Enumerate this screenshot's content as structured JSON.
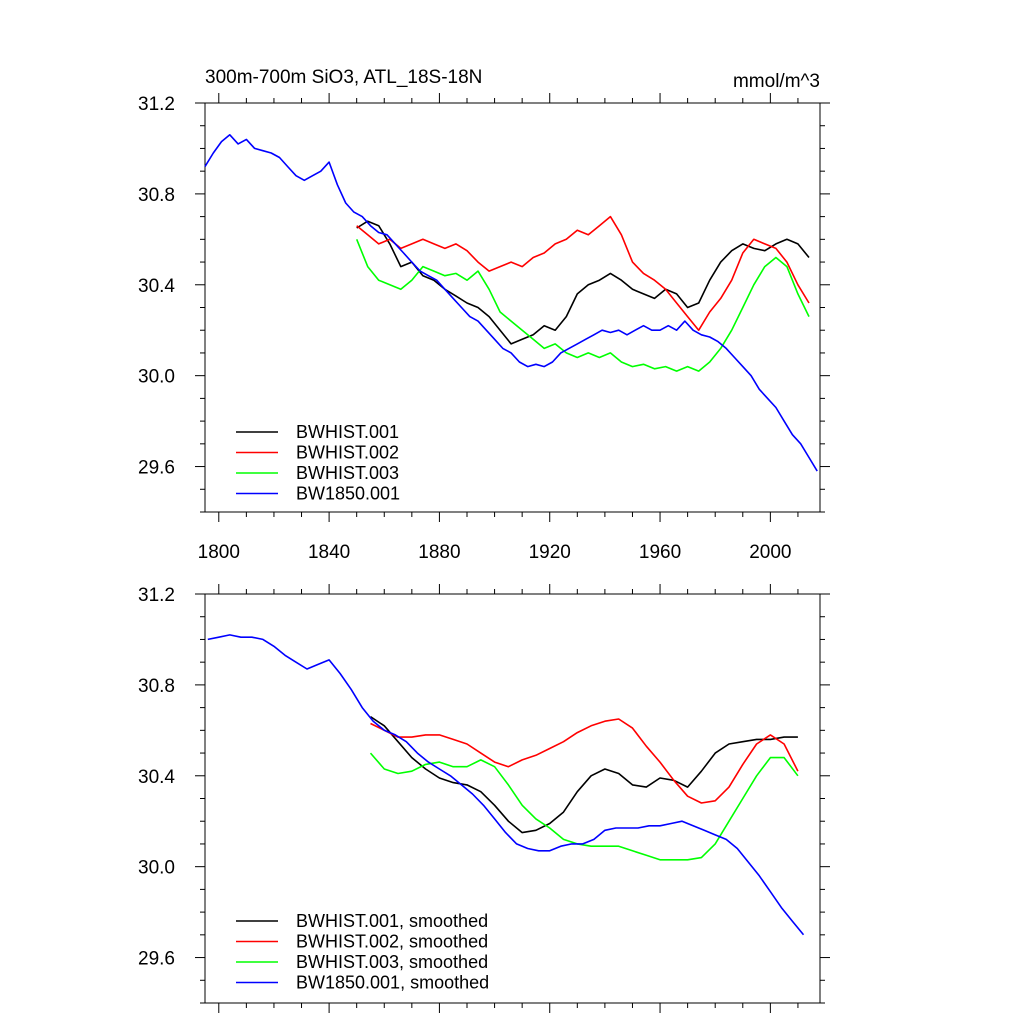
{
  "chart_data": [
    {
      "type": "line",
      "title": "300m-700m SiO3, ATL_18S-18N",
      "units": "mmol/m^3",
      "xlim": [
        1795,
        2018
      ],
      "ylim": [
        29.4,
        31.2
      ],
      "x_ticks": [
        1800,
        1840,
        1880,
        1920,
        1960,
        2000
      ],
      "x_tick_labels": [
        "1800",
        "1840",
        "1880",
        "1920",
        "1960",
        "2000"
      ],
      "y_ticks": [
        29.6,
        30.0,
        30.4,
        30.8,
        31.2
      ],
      "y_tick_labels": [
        "29.6",
        "30.0",
        "30.4",
        "30.8",
        "31.2"
      ],
      "legend_position": "bottom-left",
      "series": [
        {
          "name": "BWHIST.001",
          "color": "#000000",
          "x": [
            1850,
            1854,
            1858,
            1862,
            1866,
            1870,
            1874,
            1878,
            1882,
            1886,
            1890,
            1894,
            1898,
            1902,
            1906,
            1910,
            1914,
            1918,
            1922,
            1926,
            1930,
            1934,
            1938,
            1942,
            1946,
            1950,
            1954,
            1958,
            1962,
            1966,
            1970,
            1974,
            1978,
            1982,
            1986,
            1990,
            1994,
            1998,
            2002,
            2006,
            2010,
            2014
          ],
          "y": [
            30.65,
            30.68,
            30.66,
            30.58,
            30.48,
            30.5,
            30.44,
            30.42,
            30.38,
            30.35,
            30.32,
            30.3,
            30.26,
            30.2,
            30.14,
            30.16,
            30.18,
            30.22,
            30.2,
            30.26,
            30.36,
            30.4,
            30.42,
            30.45,
            30.42,
            30.38,
            30.36,
            30.34,
            30.38,
            30.36,
            30.3,
            30.32,
            30.42,
            30.5,
            30.55,
            30.58,
            30.56,
            30.55,
            30.58,
            30.6,
            30.58,
            30.52
          ]
        },
        {
          "name": "BWHIST.002",
          "color": "#ff0000",
          "x": [
            1850,
            1854,
            1858,
            1862,
            1866,
            1870,
            1874,
            1878,
            1882,
            1886,
            1890,
            1894,
            1898,
            1902,
            1906,
            1910,
            1914,
            1918,
            1922,
            1926,
            1930,
            1934,
            1938,
            1942,
            1946,
            1950,
            1954,
            1958,
            1962,
            1966,
            1970,
            1974,
            1978,
            1982,
            1986,
            1990,
            1994,
            1998,
            2002,
            2006,
            2010,
            2014
          ],
          "y": [
            30.66,
            30.62,
            30.58,
            30.6,
            30.56,
            30.58,
            30.6,
            30.58,
            30.56,
            30.58,
            30.55,
            30.5,
            30.46,
            30.48,
            30.5,
            30.48,
            30.52,
            30.54,
            30.58,
            30.6,
            30.64,
            30.62,
            30.66,
            30.7,
            30.62,
            30.5,
            30.45,
            30.42,
            30.38,
            30.32,
            30.26,
            30.2,
            30.28,
            30.34,
            30.42,
            30.54,
            30.6,
            30.58,
            30.56,
            30.5,
            30.4,
            30.32
          ]
        },
        {
          "name": "BWHIST.003",
          "color": "#00ff00",
          "x": [
            1850,
            1854,
            1858,
            1862,
            1866,
            1870,
            1874,
            1878,
            1882,
            1886,
            1890,
            1894,
            1898,
            1902,
            1906,
            1910,
            1914,
            1918,
            1922,
            1926,
            1930,
            1934,
            1938,
            1942,
            1946,
            1950,
            1954,
            1958,
            1962,
            1966,
            1970,
            1974,
            1978,
            1982,
            1986,
            1990,
            1994,
            1998,
            2002,
            2006,
            2010,
            2014
          ],
          "y": [
            30.6,
            30.48,
            30.42,
            30.4,
            30.38,
            30.42,
            30.48,
            30.46,
            30.44,
            30.45,
            30.42,
            30.46,
            30.38,
            30.28,
            30.24,
            30.2,
            30.16,
            30.12,
            30.14,
            30.1,
            30.08,
            30.1,
            30.08,
            30.1,
            30.06,
            30.04,
            30.05,
            30.03,
            30.04,
            30.02,
            30.04,
            30.02,
            30.06,
            30.12,
            30.2,
            30.3,
            30.4,
            30.48,
            30.52,
            30.48,
            30.36,
            30.26
          ]
        },
        {
          "name": "BW1850.001",
          "color": "#0000ff",
          "x": [
            1795,
            1798,
            1801,
            1804,
            1807,
            1810,
            1813,
            1816,
            1819,
            1822,
            1825,
            1828,
            1831,
            1834,
            1837,
            1840,
            1843,
            1846,
            1849,
            1852,
            1855,
            1858,
            1861,
            1864,
            1867,
            1870,
            1873,
            1876,
            1879,
            1882,
            1885,
            1888,
            1891,
            1894,
            1897,
            1900,
            1903,
            1906,
            1909,
            1912,
            1915,
            1918,
            1921,
            1924,
            1927,
            1930,
            1933,
            1936,
            1939,
            1942,
            1945,
            1948,
            1951,
            1954,
            1957,
            1960,
            1963,
            1966,
            1969,
            1972,
            1975,
            1978,
            1981,
            1984,
            1987,
            1990,
            1993,
            1996,
            1999,
            2002,
            2005,
            2008,
            2011,
            2014,
            2017
          ],
          "y": [
            30.92,
            30.98,
            31.03,
            31.06,
            31.02,
            31.04,
            31.0,
            30.99,
            30.98,
            30.96,
            30.92,
            30.88,
            30.86,
            30.88,
            30.9,
            30.94,
            30.84,
            30.76,
            30.72,
            30.7,
            30.66,
            30.63,
            30.62,
            30.58,
            30.54,
            30.5,
            30.46,
            30.44,
            30.42,
            30.38,
            30.34,
            30.3,
            30.26,
            30.24,
            30.2,
            30.16,
            30.12,
            30.1,
            30.06,
            30.04,
            30.05,
            30.04,
            30.06,
            30.1,
            30.12,
            30.14,
            30.16,
            30.18,
            30.2,
            30.19,
            30.2,
            30.18,
            30.2,
            30.22,
            30.2,
            30.2,
            30.22,
            30.2,
            30.24,
            30.2,
            30.18,
            30.17,
            30.15,
            30.12,
            30.08,
            30.04,
            30.0,
            29.94,
            29.9,
            29.86,
            29.8,
            29.74,
            29.7,
            29.64,
            29.58
          ]
        }
      ]
    },
    {
      "type": "line",
      "title": "",
      "units": "",
      "xlim": [
        1795,
        2018
      ],
      "ylim": [
        29.4,
        31.2
      ],
      "x_ticks": [
        1800,
        1840,
        1880,
        1920,
        1960,
        2000
      ],
      "x_tick_labels": [],
      "y_ticks": [
        29.6,
        30.0,
        30.4,
        30.8,
        31.2
      ],
      "y_tick_labels": [
        "29.6",
        "30.0",
        "30.4",
        "30.8",
        "31.2"
      ],
      "legend_position": "bottom-left",
      "series": [
        {
          "name": "BWHIST.001, smoothed",
          "color": "#000000",
          "x": [
            1855,
            1860,
            1865,
            1870,
            1875,
            1880,
            1885,
            1890,
            1895,
            1900,
            1905,
            1910,
            1915,
            1920,
            1925,
            1930,
            1935,
            1940,
            1945,
            1950,
            1955,
            1960,
            1965,
            1970,
            1975,
            1980,
            1985,
            1990,
            1995,
            2000,
            2005,
            2010
          ],
          "y": [
            30.66,
            30.62,
            30.55,
            30.48,
            30.43,
            30.39,
            30.37,
            30.36,
            30.33,
            30.27,
            30.2,
            30.15,
            30.16,
            30.19,
            30.24,
            30.33,
            30.4,
            30.43,
            30.41,
            30.36,
            30.35,
            30.39,
            30.38,
            30.35,
            30.42,
            30.5,
            30.54,
            30.55,
            30.56,
            30.56,
            30.57,
            30.57
          ]
        },
        {
          "name": "BWHIST.002, smoothed",
          "color": "#ff0000",
          "x": [
            1855,
            1860,
            1865,
            1870,
            1875,
            1880,
            1885,
            1890,
            1895,
            1900,
            1905,
            1910,
            1915,
            1920,
            1925,
            1930,
            1935,
            1940,
            1945,
            1950,
            1955,
            1960,
            1965,
            1970,
            1975,
            1980,
            1985,
            1990,
            1995,
            2000,
            2005,
            2010
          ],
          "y": [
            30.63,
            30.6,
            30.57,
            30.57,
            30.58,
            30.58,
            30.56,
            30.54,
            30.5,
            30.46,
            30.44,
            30.47,
            30.49,
            30.52,
            30.55,
            30.59,
            30.62,
            30.64,
            30.65,
            30.61,
            30.53,
            30.46,
            30.38,
            30.31,
            30.28,
            30.29,
            30.35,
            30.45,
            30.54,
            30.58,
            30.54,
            30.42
          ]
        },
        {
          "name": "BWHIST.003, smoothed",
          "color": "#00ff00",
          "x": [
            1855,
            1860,
            1865,
            1870,
            1875,
            1880,
            1885,
            1890,
            1895,
            1900,
            1905,
            1910,
            1915,
            1920,
            1925,
            1930,
            1935,
            1940,
            1945,
            1950,
            1955,
            1960,
            1965,
            1970,
            1975,
            1980,
            1985,
            1990,
            1995,
            2000,
            2005,
            2010
          ],
          "y": [
            30.5,
            30.43,
            30.41,
            30.42,
            30.45,
            30.46,
            30.44,
            30.44,
            30.47,
            30.44,
            30.36,
            30.27,
            30.21,
            30.17,
            30.12,
            30.1,
            30.09,
            30.09,
            30.09,
            30.07,
            30.05,
            30.03,
            30.03,
            30.03,
            30.04,
            30.1,
            30.2,
            30.3,
            30.4,
            30.48,
            30.48,
            30.4
          ]
        },
        {
          "name": "BW1850.001, smoothed",
          "color": "#0000ff",
          "x": [
            1796,
            1800,
            1804,
            1808,
            1812,
            1816,
            1820,
            1824,
            1828,
            1832,
            1836,
            1840,
            1844,
            1848,
            1852,
            1856,
            1860,
            1864,
            1868,
            1872,
            1876,
            1880,
            1884,
            1888,
            1892,
            1896,
            1900,
            1904,
            1908,
            1912,
            1916,
            1920,
            1924,
            1928,
            1932,
            1936,
            1940,
            1944,
            1948,
            1952,
            1956,
            1960,
            1964,
            1968,
            1972,
            1976,
            1980,
            1984,
            1988,
            1992,
            1996,
            2000,
            2004,
            2008,
            2012
          ],
          "y": [
            31.0,
            31.01,
            31.02,
            31.01,
            31.01,
            31.0,
            30.97,
            30.93,
            30.9,
            30.87,
            30.89,
            30.91,
            30.85,
            30.78,
            30.7,
            30.64,
            30.6,
            30.58,
            30.55,
            30.5,
            30.46,
            30.43,
            30.4,
            30.36,
            30.32,
            30.27,
            30.21,
            30.15,
            30.1,
            30.08,
            30.07,
            30.07,
            30.09,
            30.1,
            30.1,
            30.12,
            30.16,
            30.17,
            30.17,
            30.17,
            30.18,
            30.18,
            30.19,
            30.2,
            30.18,
            30.16,
            30.14,
            30.12,
            30.08,
            30.02,
            29.96,
            29.89,
            29.82,
            29.76,
            29.7
          ]
        }
      ]
    }
  ]
}
